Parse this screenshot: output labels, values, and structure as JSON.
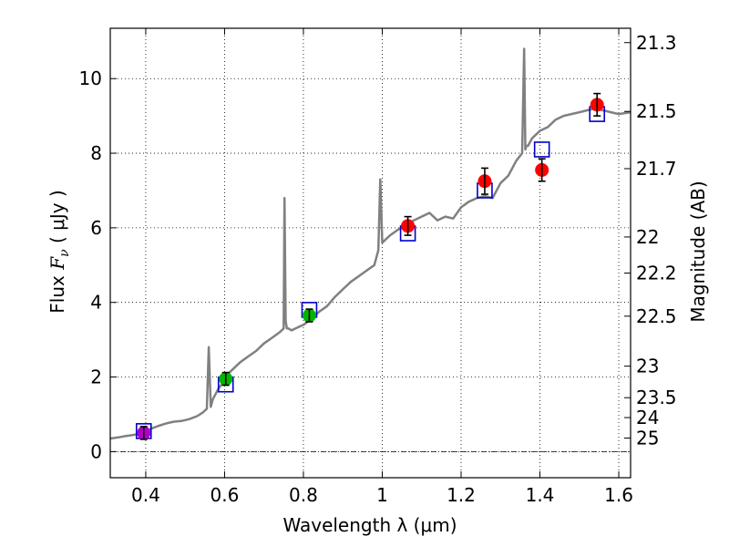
{
  "chart_data": {
    "type": "scatter",
    "title": "",
    "xlabel": "Wavelength  λ (μm)",
    "ylabel": "Flux  F_ν  ( μJy )",
    "ylabel_parts": {
      "prefix": "Flux ",
      "symbol": "F",
      "subscript": "ν",
      "suffix": "  ( μJy )"
    },
    "y2label": "Magnitude (AB)",
    "xlim": [
      0.31,
      1.63
    ],
    "ylim": [
      -0.7,
      11.35
    ],
    "grid": true,
    "x_ticks": [
      0.4,
      0.6,
      0.8,
      1.0,
      1.2,
      1.4,
      1.6
    ],
    "x_tick_labels": [
      "0.4",
      "0.6",
      "0.8",
      "1",
      "1.2",
      "1.4",
      "1.6"
    ],
    "y_ticks": [
      0,
      2,
      4,
      6,
      8,
      10
    ],
    "y_tick_labels": [
      "0",
      "2",
      "4",
      "6",
      "8",
      "10"
    ],
    "y2_ticks": [
      21.3,
      21.5,
      21.7,
      22,
      22.2,
      22.5,
      23,
      23.5,
      24,
      25
    ],
    "y2_tick_labels": [
      "21.3",
      "21.5",
      "21.7",
      "22",
      "22.2",
      "22.5",
      "23",
      "23.5",
      "24",
      "25"
    ],
    "zero_line": 0,
    "colors": {
      "spectrum": "#808080",
      "model": "#0000cc",
      "optical_blue": "#b000c8",
      "optical_green": "#00b400",
      "nir": "#ff0000",
      "errorbar": "#000000"
    },
    "series": [
      {
        "name": "model spectrum",
        "kind": "line",
        "color": "#808080",
        "x": [
          0.31,
          0.33,
          0.35,
          0.37,
          0.39,
          0.41,
          0.43,
          0.45,
          0.47,
          0.49,
          0.51,
          0.53,
          0.545,
          0.555,
          0.56,
          0.565,
          0.57,
          0.585,
          0.6,
          0.61,
          0.62,
          0.63,
          0.64,
          0.66,
          0.68,
          0.7,
          0.72,
          0.74,
          0.75,
          0.752,
          0.755,
          0.758,
          0.762,
          0.77,
          0.78,
          0.8,
          0.82,
          0.84,
          0.86,
          0.88,
          0.9,
          0.92,
          0.94,
          0.96,
          0.98,
          0.99,
          0.995,
          1.0,
          1.005,
          1.02,
          1.04,
          1.06,
          1.08,
          1.1,
          1.12,
          1.14,
          1.16,
          1.18,
          1.2,
          1.22,
          1.24,
          1.26,
          1.28,
          1.3,
          1.32,
          1.34,
          1.355,
          1.36,
          1.363,
          1.366,
          1.37,
          1.38,
          1.4,
          1.42,
          1.44,
          1.46,
          1.48,
          1.5,
          1.52,
          1.54,
          1.56,
          1.58,
          1.6,
          1.63
        ],
        "y": [
          0.35,
          0.38,
          0.42,
          0.45,
          0.5,
          0.6,
          0.68,
          0.75,
          0.8,
          0.82,
          0.87,
          0.95,
          1.05,
          1.15,
          2.8,
          1.2,
          1.4,
          1.7,
          1.9,
          2.1,
          2.2,
          2.3,
          2.4,
          2.55,
          2.7,
          2.9,
          3.05,
          3.2,
          3.3,
          6.8,
          3.5,
          3.3,
          3.3,
          3.25,
          3.3,
          3.4,
          3.55,
          3.75,
          3.9,
          4.15,
          4.35,
          4.55,
          4.7,
          4.85,
          5.0,
          5.4,
          7.3,
          5.6,
          5.65,
          5.8,
          5.95,
          6.05,
          6.2,
          6.3,
          6.4,
          6.2,
          6.3,
          6.25,
          6.55,
          6.7,
          6.8,
          6.85,
          6.8,
          7.2,
          7.4,
          7.8,
          8.0,
          10.8,
          8.1,
          8.2,
          8.2,
          8.4,
          8.6,
          8.7,
          8.9,
          9.0,
          9.05,
          9.1,
          9.15,
          9.2,
          9.15,
          9.1,
          9.05,
          9.1
        ]
      },
      {
        "name": "model photometry",
        "kind": "square",
        "color": "#0000cc",
        "x": [
          0.395,
          0.603,
          0.815,
          1.065,
          1.26,
          1.405,
          1.545
        ],
        "y": [
          0.55,
          1.8,
          3.8,
          5.85,
          7.0,
          8.1,
          9.05
        ]
      },
      {
        "name": "observed optical (blue)",
        "kind": "circle",
        "color": "#b000c8",
        "x": [
          0.395
        ],
        "y": [
          0.5
        ],
        "yerr": [
          0.17
        ]
      },
      {
        "name": "observed optical (green)",
        "kind": "circle",
        "color": "#00b400",
        "x": [
          0.603,
          0.815
        ],
        "y": [
          1.95,
          3.65
        ],
        "yerr": [
          0.17,
          0.17
        ]
      },
      {
        "name": "observed near-IR",
        "kind": "circle",
        "color": "#ff0000",
        "x": [
          1.065,
          1.26,
          1.405,
          1.545
        ],
        "y": [
          6.05,
          7.25,
          7.55,
          9.3
        ],
        "yerr": [
          0.25,
          0.35,
          0.3,
          0.3
        ]
      }
    ]
  }
}
